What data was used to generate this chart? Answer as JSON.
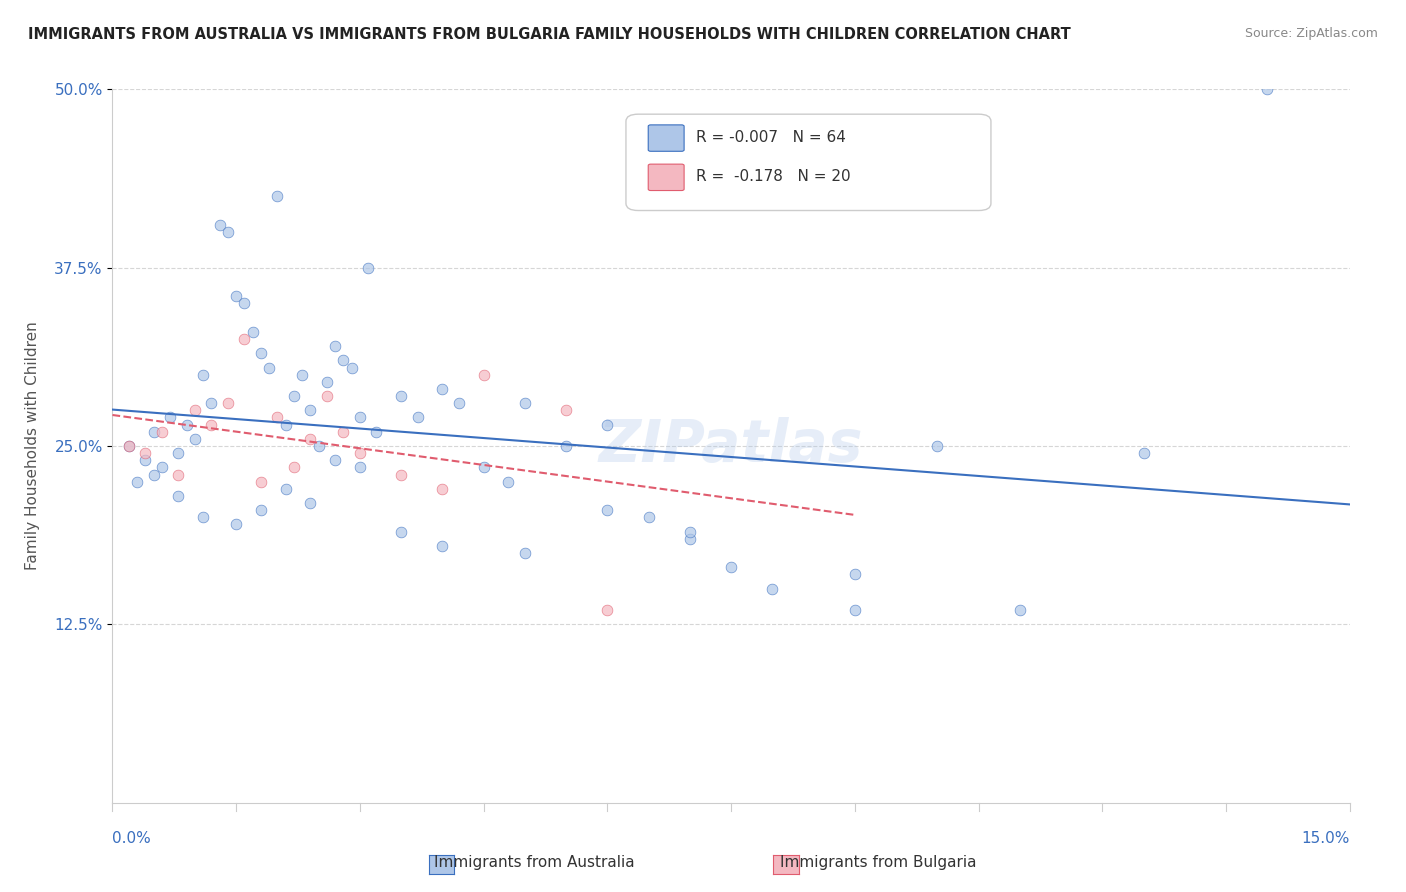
{
  "title": "IMMIGRANTS FROM AUSTRALIA VS IMMIGRANTS FROM BULGARIA FAMILY HOUSEHOLDS WITH CHILDREN CORRELATION CHART",
  "source": "Source: ZipAtlas.com",
  "legend_entries": [
    {
      "label": "Immigrants from Australia",
      "R": "-0.007",
      "N": "64",
      "color": "#aec6e8",
      "line_color": "#3a6fbf"
    },
    {
      "label": "Immigrants from Bulgaria",
      "R": " -0.178",
      "N": "20",
      "color": "#f4b8c1",
      "line_color": "#e05c6e"
    }
  ],
  "watermark": "ZIPatlas",
  "australia_x": [
    0.2,
    0.4,
    0.5,
    0.6,
    0.7,
    0.8,
    0.9,
    1.0,
    1.1,
    1.2,
    1.3,
    1.4,
    1.5,
    1.6,
    1.7,
    1.8,
    1.9,
    2.0,
    2.1,
    2.2,
    2.3,
    2.4,
    2.5,
    2.6,
    2.7,
    2.8,
    2.9,
    3.0,
    3.1,
    3.2,
    3.5,
    3.7,
    4.0,
    4.2,
    4.5,
    4.8,
    5.0,
    5.5,
    6.0,
    6.5,
    7.0,
    7.5,
    8.0,
    9.0,
    10.0,
    12.5,
    0.3,
    0.5,
    0.8,
    1.1,
    1.5,
    1.8,
    2.1,
    2.4,
    2.7,
    3.0,
    3.5,
    4.0,
    5.0,
    6.0,
    7.0,
    9.0,
    11.0,
    14.0
  ],
  "australia_y": [
    25.0,
    24.0,
    26.0,
    23.5,
    27.0,
    24.5,
    26.5,
    25.5,
    30.0,
    28.0,
    40.5,
    40.0,
    35.5,
    35.0,
    33.0,
    31.5,
    30.5,
    42.5,
    26.5,
    28.5,
    30.0,
    27.5,
    25.0,
    29.5,
    32.0,
    31.0,
    30.5,
    27.0,
    37.5,
    26.0,
    28.5,
    27.0,
    29.0,
    28.0,
    23.5,
    22.5,
    28.0,
    25.0,
    26.5,
    20.0,
    18.5,
    16.5,
    15.0,
    13.5,
    25.0,
    24.5,
    22.5,
    23.0,
    21.5,
    20.0,
    19.5,
    20.5,
    22.0,
    21.0,
    24.0,
    23.5,
    19.0,
    18.0,
    17.5,
    20.5,
    19.0,
    16.0,
    13.5,
    50.0
  ],
  "bulgaria_x": [
    0.2,
    0.4,
    0.6,
    0.8,
    1.0,
    1.2,
    1.4,
    1.6,
    1.8,
    2.0,
    2.2,
    2.4,
    2.6,
    2.8,
    3.0,
    3.5,
    4.0,
    4.5,
    5.5,
    6.0
  ],
  "bulgaria_y": [
    25.0,
    24.5,
    26.0,
    23.0,
    27.5,
    26.5,
    28.0,
    32.5,
    22.5,
    27.0,
    23.5,
    25.5,
    28.5,
    26.0,
    24.5,
    23.0,
    22.0,
    30.0,
    27.5,
    13.5
  ],
  "xmin": 0.0,
  "xmax": 15.0,
  "ymin": 0.0,
  "ymax": 50.0,
  "background_color": "#ffffff",
  "grid_color": "#cccccc",
  "axis_label_color": "#3a6fbf",
  "dot_size": 60,
  "dot_alpha": 0.7
}
